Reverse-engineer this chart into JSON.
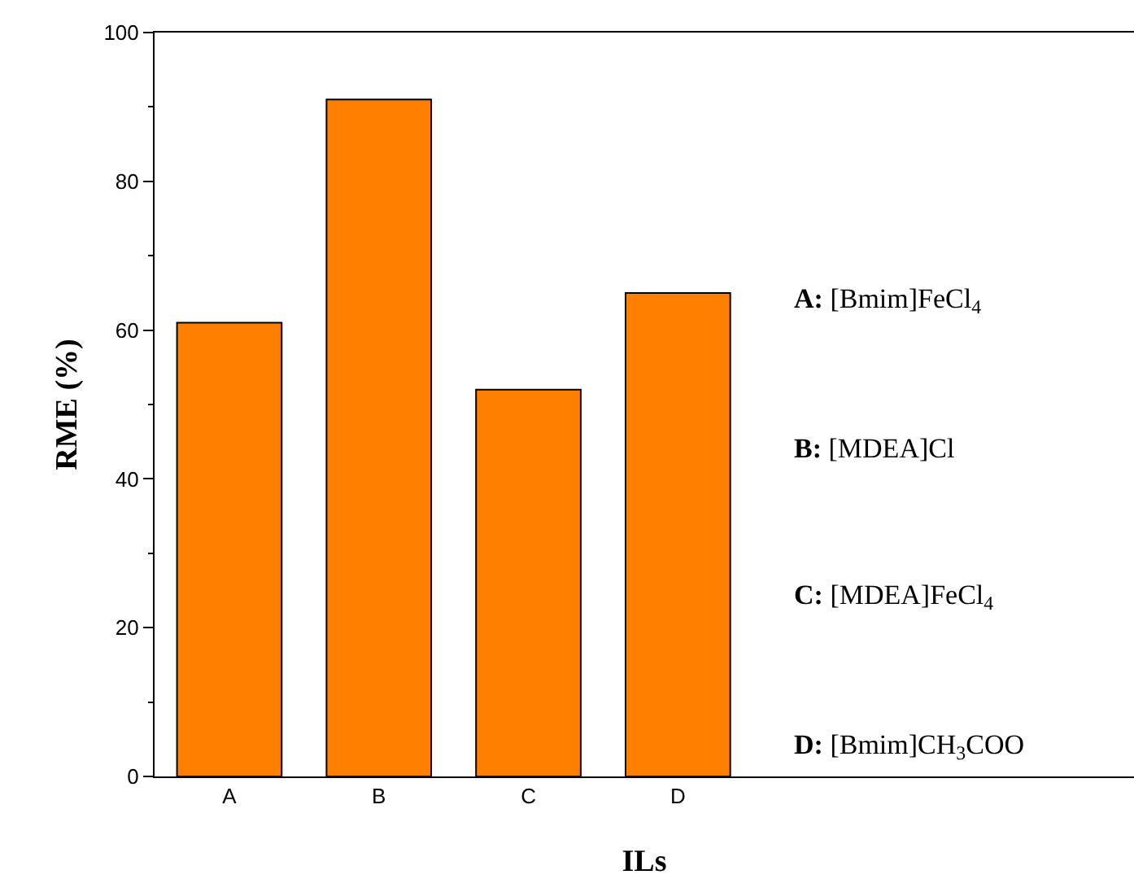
{
  "chart_data": {
    "type": "bar",
    "xlabel": "ILs",
    "ylabel": "RME (%)",
    "categories": [
      "A",
      "B",
      "C",
      "D"
    ],
    "values": [
      61,
      91,
      52,
      65
    ],
    "color": "#ff8000",
    "ylim": [
      0,
      100
    ],
    "yticks": [
      0,
      20,
      40,
      60,
      80,
      100
    ],
    "grid": false,
    "annotations": [
      "A: [Bmim]FeCl$_{4}$",
      "B: [MDEA]Cl",
      "C: [MDEA]FeCl$_{4}$",
      "D: [Bmim]CH$_{3}$COO"
    ]
  }
}
